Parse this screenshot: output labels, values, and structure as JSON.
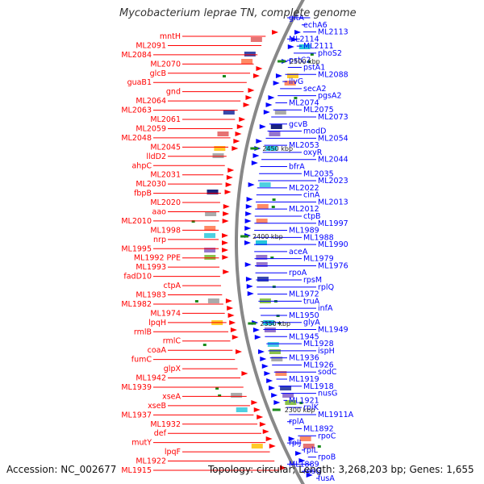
{
  "map": {
    "title": "Mycobacterium leprae TN, complete genome",
    "accession": "Accession: NC_002677",
    "topology": "Topology: circular; Length: 3,268,203 bp; Genes: 1,655",
    "colors": {
      "reverse_strand": "#ff0000",
      "forward_strand": "#0000ff",
      "backbone": "#888888",
      "marker": "#1a8a1a"
    },
    "ticks": [
      "2500 kbp",
      "2450 kbp",
      "2400 kbp",
      "2350 kbp",
      "2300 kbp"
    ],
    "left_labels": [
      "mntH",
      "ML2091",
      "ML2084",
      "ML2070",
      "glcB",
      "guaB1",
      "gnd",
      "ML2064",
      "ML2063",
      "ML2061",
      "ML2059",
      "ML2048",
      "ML2045",
      "lldD2",
      "ahpC",
      "ML2031",
      "ML2030",
      "fbpB",
      "ML2020",
      "aao",
      "ML2010",
      "ML1998",
      "nrp",
      "ML1995",
      "ML1992 PPE",
      "ML1993",
      "fadD10",
      "ctpA",
      "ML1983",
      "ML1982",
      "ML1974",
      "lpqH",
      "rmlB",
      "rmlC",
      "coaA",
      "fumC",
      "glpX",
      "ML1942",
      "ML1939",
      "xseA",
      "xseB",
      "ML1937",
      "ML1932",
      "def",
      "mutY",
      "lpqF",
      "ML1922",
      "ML1915"
    ],
    "right_labels": [
      "gltA",
      "echA6",
      "ML2113",
      "ML2114",
      "ML2111",
      "phoS2",
      "pstC2",
      "pstA1",
      "ML2088",
      "ilvG",
      "secA2",
      "pgsA2",
      "ML2074",
      "ML2075",
      "ML2073",
      "gcvB",
      "modD",
      "ML2054",
      "ML2053",
      "oxyR",
      "ML2044",
      "bfrA",
      "ML2035",
      "ML2023",
      "ML2022",
      "cinA",
      "ML2013",
      "ML2012",
      "ctpB",
      "ML1997",
      "ML1989",
      "ML1988",
      "ML1990",
      "aceA",
      "ML1979",
      "ML1976",
      "rpoA",
      "rpsM",
      "rplQ",
      "ML1972",
      "truA",
      "infA",
      "ML1950",
      "glyA",
      "ML1949",
      "ML1945",
      "ML1928",
      "ispH",
      "ML1936",
      "ML1926",
      "sodC",
      "ML1919",
      "ML1918",
      "nusG",
      "ML1921",
      "rplK",
      "ML1911A",
      "rplA",
      "ML1892",
      "rpoC",
      "rplJ",
      "rplL",
      "rpoB",
      "ML1889",
      "rpsG",
      "fusA"
    ]
  }
}
